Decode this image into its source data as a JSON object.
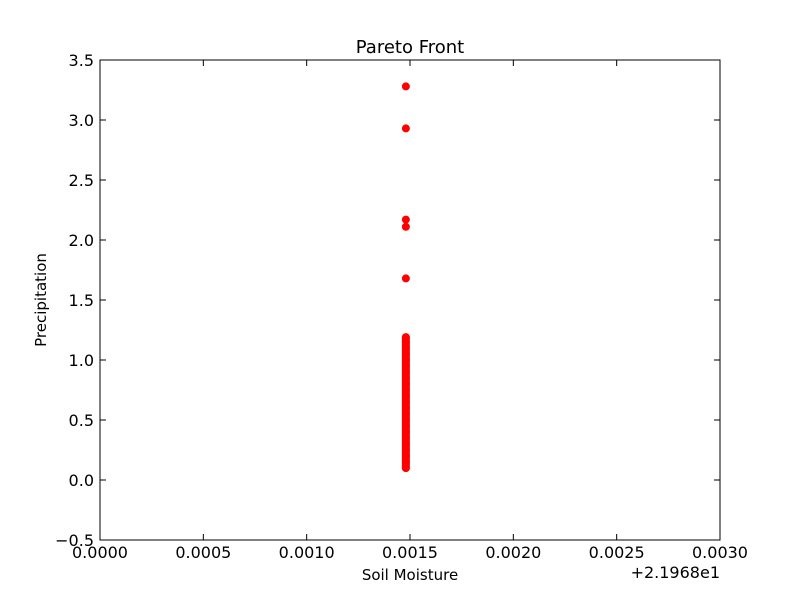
{
  "chart_data": {
    "type": "scatter",
    "title": "Pareto Front",
    "xlabel": "Soil Moisture",
    "ylabel": "Precipitation",
    "x_offset_label": "+2.1968e1",
    "xlim": [
      0.0,
      0.003
    ],
    "ylim": [
      -0.5,
      3.5
    ],
    "x_ticks": [
      "0.0000",
      "0.0005",
      "0.0010",
      "0.0015",
      "0.0020",
      "0.0025",
      "0.0030"
    ],
    "y_ticks": [
      "−0.5",
      "0.0",
      "0.5",
      "1.0",
      "1.5",
      "2.0",
      "2.5",
      "3.0",
      "3.5"
    ],
    "grid": false,
    "marker_color": "#ff0000",
    "series": [
      {
        "x": [
          0.00148,
          0.00148,
          0.00148,
          0.00148,
          0.00148,
          0.00148,
          0.00148,
          0.00148,
          0.00148,
          0.00148,
          0.00148,
          0.00148,
          0.00148,
          0.00148,
          0.00148,
          0.00148,
          0.00148,
          0.00148,
          0.00148,
          0.00148,
          0.00148,
          0.00148,
          0.00148,
          0.00148,
          0.00148,
          0.00148,
          0.00148,
          0.00148
        ],
        "y": [
          3.28,
          2.93,
          2.17,
          2.11,
          1.68,
          1.19,
          1.15,
          1.1,
          1.05,
          1.0,
          0.95,
          0.9,
          0.85,
          0.8,
          0.75,
          0.7,
          0.65,
          0.6,
          0.55,
          0.5,
          0.45,
          0.4,
          0.35,
          0.3,
          0.25,
          0.2,
          0.15,
          0.1
        ]
      }
    ]
  }
}
